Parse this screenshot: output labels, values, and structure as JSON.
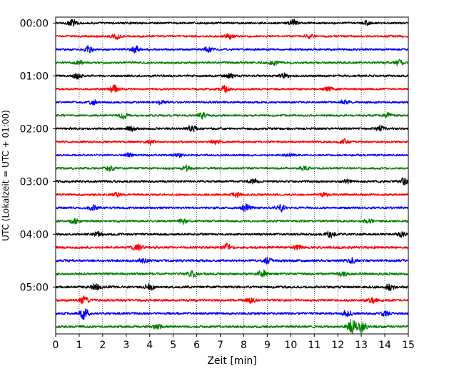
{
  "chart_data": {
    "type": "line",
    "title": "",
    "xlabel": "Zeit  [min]",
    "ylabel": "UTC (Lokalzeit = UTC + 01:00)",
    "xlim": [
      0,
      15
    ],
    "x_ticks": [
      0,
      1,
      2,
      3,
      4,
      5,
      6,
      7,
      8,
      9,
      10,
      11,
      12,
      13,
      14,
      15
    ],
    "x_tick_labels": [
      "0",
      "1",
      "2",
      "3",
      "4",
      "5",
      "6",
      "7",
      "8",
      "9",
      "10",
      "11",
      "12",
      "13",
      "14",
      "15"
    ],
    "y_tick_labels": [
      "00:00",
      "01:00",
      "02:00",
      "03:00",
      "04:00",
      "05:00"
    ],
    "grid": "vertical dotted at each minute",
    "trace_colors": [
      "#000000",
      "#ff0000",
      "#0000ff",
      "#008000"
    ],
    "trace_count": 24,
    "trace_minutes_each": 15,
    "traces": [
      {
        "start": "00:00",
        "color": "#000000",
        "amplitude": 0.3,
        "bursts": [
          [
            0.7,
            0.9
          ],
          [
            10.1,
            0.8
          ],
          [
            13.2,
            0.6
          ]
        ]
      },
      {
        "start": "00:15",
        "color": "#ff0000",
        "amplitude": 0.3,
        "bursts": [
          [
            2.6,
            0.6
          ],
          [
            7.4,
            0.6
          ],
          [
            10.8,
            0.5
          ]
        ]
      },
      {
        "start": "00:30",
        "color": "#0000ff",
        "amplitude": 0.3,
        "bursts": [
          [
            1.4,
            0.8
          ],
          [
            3.4,
            0.9
          ],
          [
            6.5,
            0.6
          ]
        ]
      },
      {
        "start": "00:45",
        "color": "#008000",
        "amplitude": 0.32,
        "bursts": [
          [
            1.0,
            0.6
          ],
          [
            9.3,
            0.6
          ],
          [
            14.6,
            0.7
          ]
        ]
      },
      {
        "start": "01:00",
        "color": "#000000",
        "amplitude": 0.32,
        "bursts": [
          [
            0.9,
            0.7
          ],
          [
            7.4,
            0.6
          ],
          [
            9.7,
            0.6
          ]
        ]
      },
      {
        "start": "01:15",
        "color": "#ff0000",
        "amplitude": 0.3,
        "bursts": [
          [
            2.5,
            1.0
          ],
          [
            7.2,
            0.9
          ],
          [
            11.6,
            0.6
          ]
        ]
      },
      {
        "start": "01:30",
        "color": "#0000ff",
        "amplitude": 0.3,
        "bursts": [
          [
            1.6,
            0.6
          ],
          [
            4.5,
            0.5
          ],
          [
            12.3,
            0.6
          ]
        ]
      },
      {
        "start": "01:45",
        "color": "#008000",
        "amplitude": 0.3,
        "bursts": [
          [
            2.9,
            0.7
          ],
          [
            6.2,
            0.7
          ],
          [
            14.1,
            0.6
          ]
        ]
      },
      {
        "start": "02:00",
        "color": "#000000",
        "amplitude": 0.32,
        "bursts": [
          [
            3.2,
            0.6
          ],
          [
            5.8,
            0.8
          ],
          [
            13.8,
            0.7
          ]
        ]
      },
      {
        "start": "02:15",
        "color": "#ff0000",
        "amplitude": 0.3,
        "bursts": [
          [
            4.0,
            0.6
          ],
          [
            6.8,
            0.5
          ],
          [
            12.3,
            0.6
          ]
        ]
      },
      {
        "start": "02:30",
        "color": "#0000ff",
        "amplitude": 0.28,
        "bursts": [
          [
            3.1,
            0.5
          ],
          [
            5.2,
            0.5
          ],
          [
            9.9,
            0.4
          ]
        ]
      },
      {
        "start": "02:45",
        "color": "#008000",
        "amplitude": 0.3,
        "bursts": [
          [
            2.3,
            0.9
          ],
          [
            5.6,
            0.8
          ],
          [
            10.6,
            0.5
          ]
        ]
      },
      {
        "start": "03:00",
        "color": "#000000",
        "amplitude": 0.32,
        "bursts": [
          [
            8.4,
            0.6
          ],
          [
            12.4,
            0.6
          ],
          [
            14.8,
            0.8
          ]
        ]
      },
      {
        "start": "03:15",
        "color": "#ff0000",
        "amplitude": 0.3,
        "bursts": [
          [
            2.6,
            0.6
          ],
          [
            7.7,
            0.6
          ],
          [
            11.4,
            0.5
          ]
        ]
      },
      {
        "start": "03:30",
        "color": "#0000ff",
        "amplitude": 0.32,
        "bursts": [
          [
            1.6,
            0.7
          ],
          [
            8.1,
            1.0
          ],
          [
            9.6,
            0.8
          ]
        ]
      },
      {
        "start": "03:45",
        "color": "#008000",
        "amplitude": 0.32,
        "bursts": [
          [
            0.8,
            0.7
          ],
          [
            5.4,
            0.6
          ],
          [
            13.3,
            0.6
          ]
        ]
      },
      {
        "start": "04:00",
        "color": "#000000",
        "amplitude": 0.32,
        "bursts": [
          [
            1.8,
            0.6
          ],
          [
            11.7,
            0.9
          ],
          [
            14.7,
            0.7
          ]
        ]
      },
      {
        "start": "04:15",
        "color": "#ff0000",
        "amplitude": 0.34,
        "bursts": [
          [
            3.5,
            0.9
          ],
          [
            7.3,
            1.0
          ],
          [
            10.3,
            0.7
          ]
        ]
      },
      {
        "start": "04:30",
        "color": "#0000ff",
        "amplitude": 0.34,
        "bursts": [
          [
            3.7,
            0.7
          ],
          [
            9.0,
            0.7
          ],
          [
            12.6,
            0.7
          ]
        ]
      },
      {
        "start": "04:45",
        "color": "#008000",
        "amplitude": 0.34,
        "bursts": [
          [
            5.8,
            0.8
          ],
          [
            8.8,
            1.0
          ],
          [
            12.2,
            0.7
          ]
        ]
      },
      {
        "start": "05:00",
        "color": "#000000",
        "amplitude": 0.34,
        "bursts": [
          [
            1.7,
            0.8
          ],
          [
            4.0,
            0.8
          ],
          [
            14.2,
            0.9
          ]
        ]
      },
      {
        "start": "05:15",
        "color": "#ff0000",
        "amplitude": 0.34,
        "bursts": [
          [
            1.2,
            0.9
          ],
          [
            8.3,
            0.8
          ],
          [
            13.5,
            0.7
          ]
        ]
      },
      {
        "start": "05:30",
        "color": "#0000ff",
        "amplitude": 0.34,
        "bursts": [
          [
            1.2,
            1.4
          ],
          [
            12.4,
            0.8
          ],
          [
            14.0,
            0.7
          ]
        ]
      },
      {
        "start": "05:45",
        "color": "#008000",
        "amplitude": 0.34,
        "bursts": [
          [
            12.6,
            2.2
          ],
          [
            13.0,
            1.6
          ],
          [
            4.3,
            0.6
          ]
        ]
      }
    ]
  }
}
